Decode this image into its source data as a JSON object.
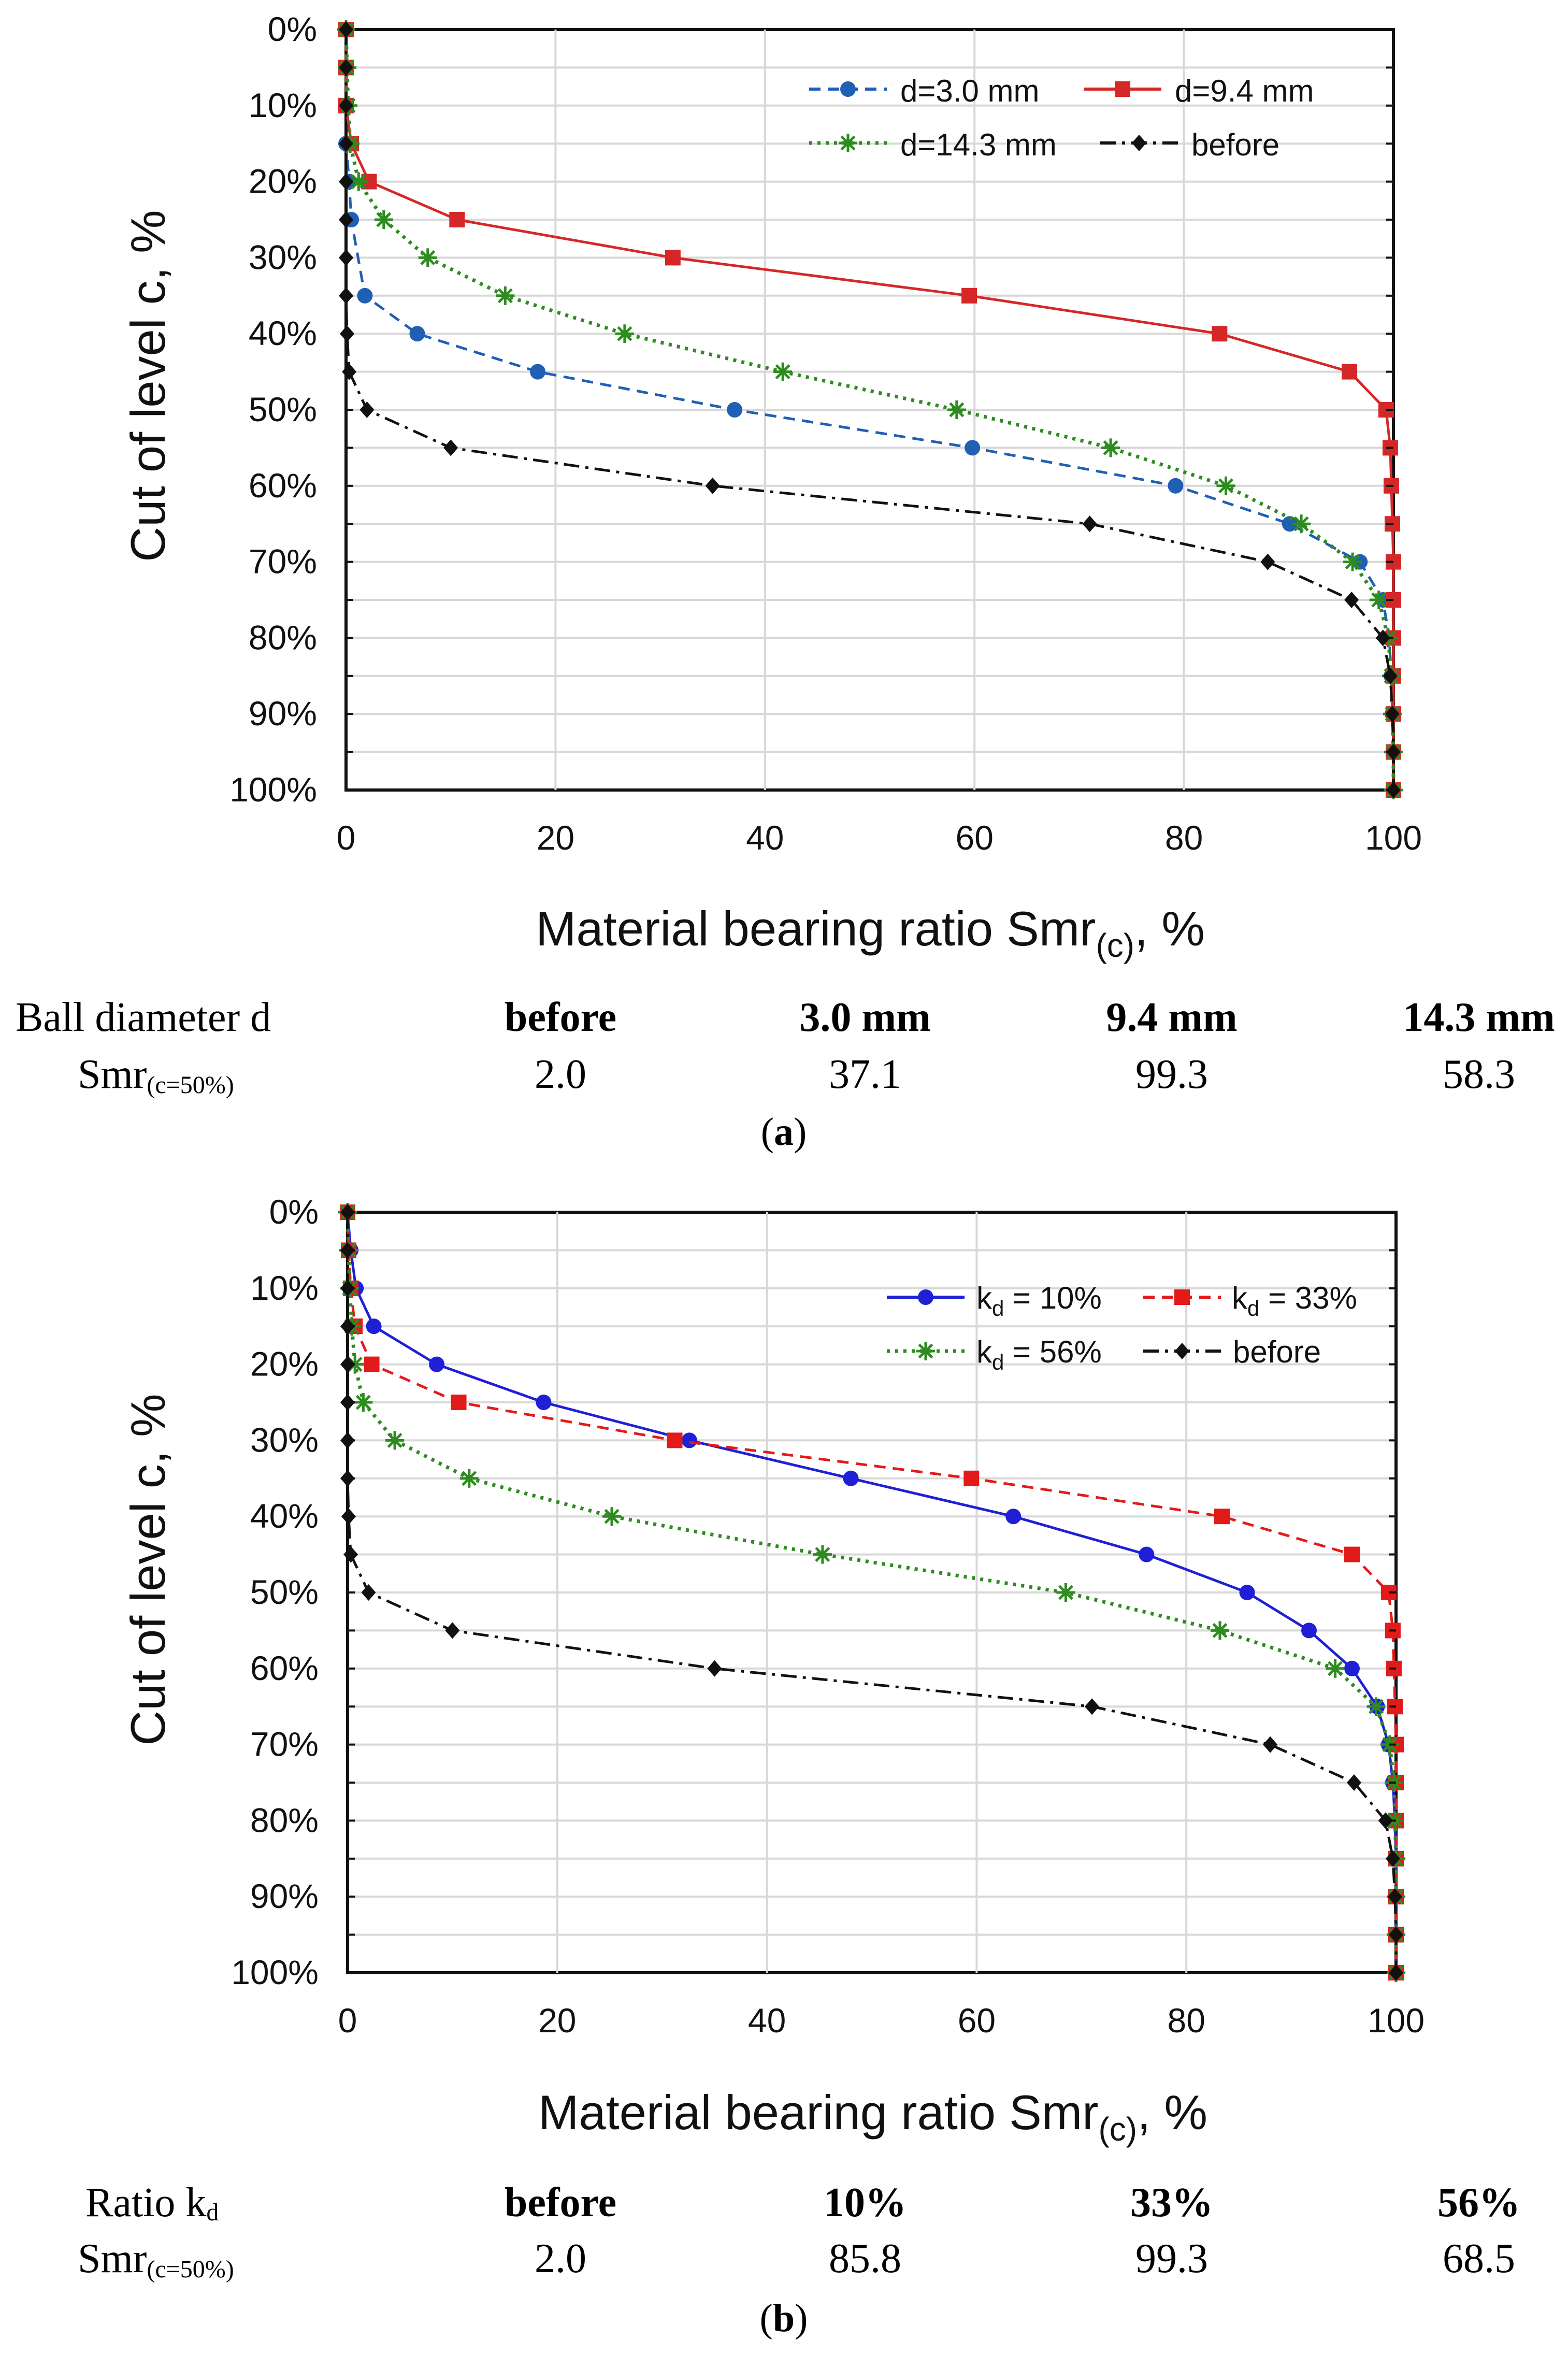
{
  "chart_data": [
    {
      "type": "line",
      "panel_label": "a",
      "xlabel": "Material bearing ratio Smr",
      "xlabel_sub": "(c)",
      "xlabel_suffix": ", %",
      "ylabel": "Cut of level c, %",
      "xlim": [
        0,
        100
      ],
      "ylim": [
        0,
        100
      ],
      "y_inverted": true,
      "xticks": [
        "0",
        "20",
        "40",
        "60",
        "80",
        "100"
      ],
      "yticks": [
        "0%",
        "10%",
        "20%",
        "30%",
        "40%",
        "50%",
        "60%",
        "70%",
        "80%",
        "90%",
        "100%"
      ],
      "grid": true,
      "legend_position": "top-right",
      "series": [
        {
          "name": "d=3.0 mm",
          "color": "#1f5fb4",
          "dash": "dashed",
          "marker": "circle",
          "x": [
            0,
            0,
            0,
            0,
            0.3,
            0.5,
            1.8,
            6.8,
            18.3,
            37.1,
            59.8,
            79.2,
            90.1,
            96.8,
            99.0,
            99.6,
            99.8,
            99.9,
            100,
            100,
            100
          ],
          "y": [
            0,
            5,
            10,
            15,
            20,
            25,
            35,
            40,
            45,
            50,
            55,
            60,
            65,
            70,
            75,
            80,
            85,
            90,
            95,
            100,
            100
          ]
        },
        {
          "name": "d=9.4 mm",
          "color": "#d62728",
          "dash": "solid",
          "marker": "square",
          "x": [
            0,
            0,
            0,
            0.5,
            2.2,
            10.6,
            31.2,
            59.5,
            83.4,
            95.8,
            99.3,
            99.7,
            99.8,
            99.9,
            100,
            100,
            100,
            100,
            100,
            100,
            100
          ],
          "y": [
            0,
            5,
            10,
            15,
            20,
            25,
            30,
            35,
            40,
            45,
            50,
            55,
            60,
            65,
            70,
            75,
            80,
            85,
            90,
            95,
            100
          ]
        },
        {
          "name": "d=14.3 mm",
          "color": "#2e8b20",
          "dash": "dotted",
          "marker": "star",
          "x": [
            0,
            0.1,
            0.2,
            0.4,
            1.2,
            3.6,
            7.8,
            15.2,
            26.6,
            41.7,
            58.3,
            73.0,
            84.0,
            91.2,
            96.1,
            98.6,
            99.5,
            99.8,
            99.9,
            100,
            100
          ],
          "y": [
            0,
            5,
            10,
            15,
            20,
            25,
            30,
            35,
            40,
            45,
            50,
            55,
            60,
            65,
            70,
            75,
            80,
            85,
            90,
            95,
            100
          ]
        },
        {
          "name": "before",
          "color": "#111111",
          "dash": "dashdot",
          "marker": "diamond",
          "x": [
            0,
            0,
            0,
            0,
            0,
            0,
            0,
            0,
            0.1,
            0.3,
            2.0,
            10.0,
            35.0,
            71.0,
            88.0,
            96.0,
            99.0,
            99.7,
            99.9,
            100,
            100
          ],
          "y": [
            0,
            5,
            10,
            15,
            20,
            25,
            30,
            35,
            40,
            45,
            50,
            55,
            60,
            65,
            70,
            75,
            80,
            85,
            90,
            95,
            100
          ]
        }
      ]
    },
    {
      "type": "line",
      "panel_label": "b",
      "xlabel": "Material bearing ratio Smr",
      "xlabel_sub": "(c)",
      "xlabel_suffix": ", %",
      "ylabel": "Cut of level c, %",
      "xlim": [
        0,
        100
      ],
      "ylim": [
        0,
        100
      ],
      "y_inverted": true,
      "xticks": [
        "0",
        "20",
        "40",
        "60",
        "80",
        "100"
      ],
      "yticks": [
        "0%",
        "10%",
        "20%",
        "30%",
        "40%",
        "50%",
        "60%",
        "70%",
        "80%",
        "90%",
        "100%"
      ],
      "grid": true,
      "legend_position": "top-right",
      "series": [
        {
          "name_main": "k",
          "name_sub": "d",
          "name_tail": " = 10%",
          "color": "#1f1fd6",
          "dash": "solid",
          "marker": "circle",
          "x": [
            0,
            0.3,
            0.8,
            2.5,
            8.5,
            18.7,
            32.6,
            48.0,
            63.5,
            76.2,
            85.8,
            91.7,
            95.8,
            98.2,
            99.3,
            99.7,
            99.9,
            100,
            100,
            100,
            100
          ],
          "y": [
            0,
            5,
            10,
            15,
            20,
            25,
            30,
            35,
            40,
            45,
            50,
            55,
            60,
            65,
            70,
            75,
            80,
            85,
            90,
            95,
            100
          ]
        },
        {
          "name_main": "k",
          "name_sub": "d",
          "name_tail": " = 33%",
          "color": "#e31a1a",
          "dash": "dashed",
          "marker": "square",
          "x": [
            0,
            0.1,
            0.3,
            0.7,
            2.3,
            10.6,
            31.2,
            59.5,
            83.4,
            95.8,
            99.3,
            99.7,
            99.8,
            99.9,
            100,
            100,
            100,
            100,
            100,
            100,
            100
          ],
          "y": [
            0,
            5,
            10,
            15,
            20,
            25,
            30,
            35,
            40,
            45,
            50,
            55,
            60,
            65,
            70,
            75,
            80,
            85,
            90,
            95,
            100
          ]
        },
        {
          "name_main": "k",
          "name_sub": "d",
          "name_tail": " = 56%",
          "color": "#2e8b20",
          "dash": "dotted",
          "marker": "star",
          "x": [
            0,
            0.1,
            0.2,
            0.4,
            0.7,
            1.5,
            4.5,
            11.6,
            25.2,
            45.3,
            68.5,
            83.2,
            94.2,
            98.1,
            99.4,
            99.8,
            99.9,
            100,
            100,
            100,
            100
          ],
          "y": [
            0,
            5,
            10,
            15,
            20,
            25,
            30,
            35,
            40,
            45,
            50,
            55,
            60,
            65,
            70,
            75,
            80,
            85,
            90,
            95,
            100
          ]
        },
        {
          "name_main": "before",
          "name_sub": "",
          "name_tail": "",
          "color": "#111111",
          "dash": "dashdot",
          "marker": "diamond",
          "x": [
            0,
            0,
            0,
            0,
            0,
            0,
            0,
            0,
            0.1,
            0.3,
            2.0,
            10.0,
            35.0,
            71.0,
            88.0,
            96.0,
            99.0,
            99.7,
            99.9,
            100,
            100
          ],
          "y": [
            0,
            5,
            10,
            15,
            20,
            25,
            30,
            35,
            40,
            45,
            50,
            55,
            60,
            65,
            70,
            75,
            80,
            85,
            90,
            95,
            100
          ]
        }
      ]
    }
  ],
  "tables": [
    {
      "row1_label": "Ball diameter d",
      "row1_values": [
        "before",
        "3.0 mm",
        "9.4 mm",
        "14.3 mm"
      ],
      "row2_label": "Smr",
      "row2_sub": "(c=50%)",
      "row2_values": [
        "2.0",
        "37.1",
        "99.3",
        "58.3"
      ],
      "caption_open": "(",
      "caption_letter": "a",
      "caption_close": ")"
    },
    {
      "row1_label": "Ratio k",
      "row1_label_sub": "d",
      "row1_values": [
        "before",
        "10%",
        "33%",
        "56%"
      ],
      "row2_label": "Smr",
      "row2_sub": "(c=50%)",
      "row2_values": [
        "2.0",
        "85.8",
        "99.3",
        "68.5"
      ],
      "caption_open": "(",
      "caption_letter": "b",
      "caption_close": ")"
    }
  ]
}
